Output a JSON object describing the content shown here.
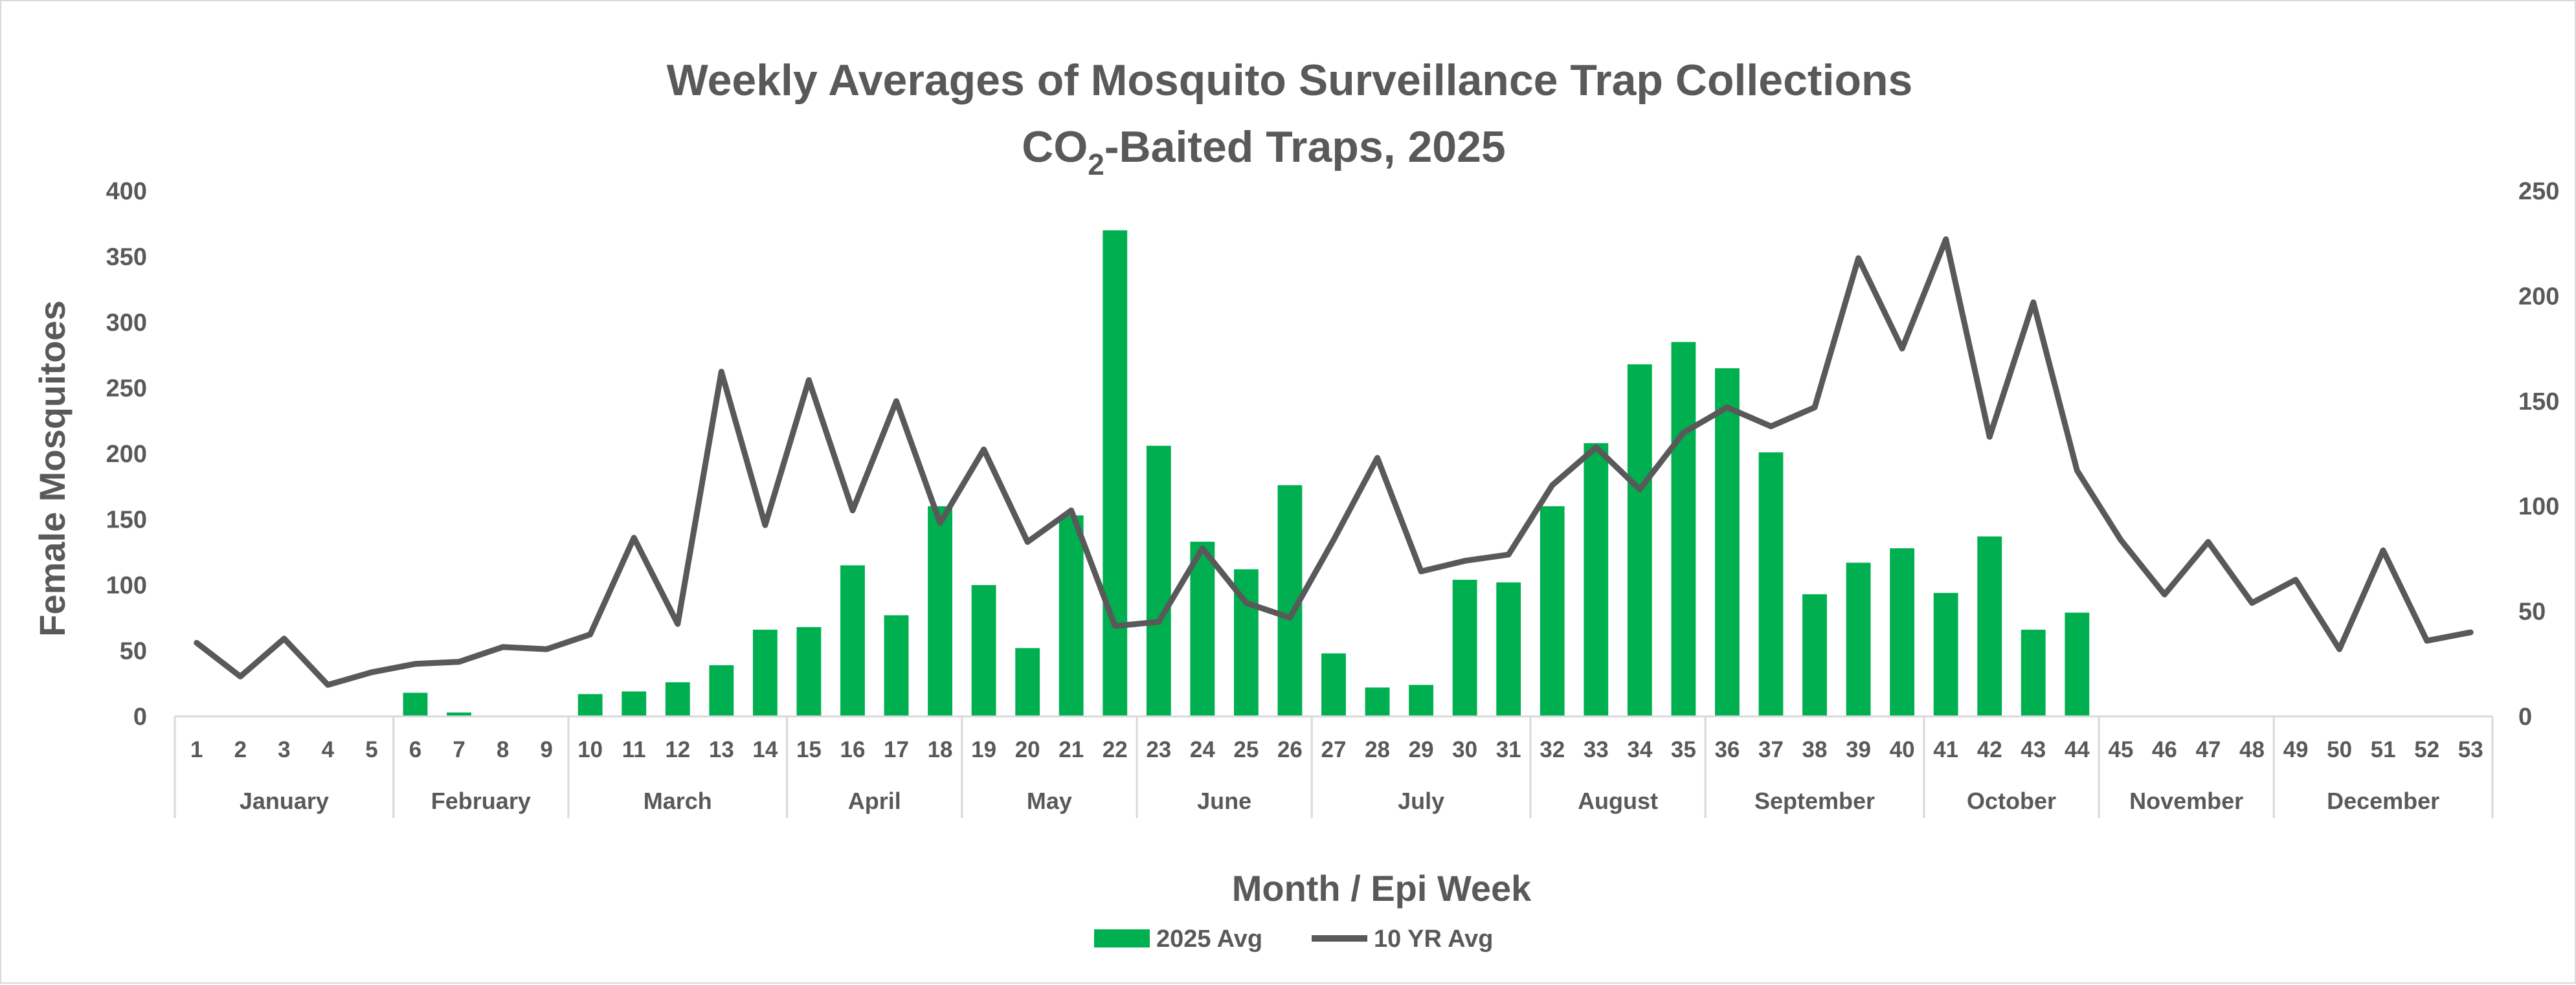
{
  "chart_data": {
    "type": "bar+line",
    "title_line1": "Weekly Averages of Mosquito Surveillance Trap Collections",
    "title_line2_prefix": "CO",
    "title_line2_subscript": "2",
    "title_line2_suffix": "-Baited Traps, 2025",
    "xlabel": "Month / Epi Week",
    "ylabel": "Female Mosquitoes",
    "ylim_left": [
      0,
      400
    ],
    "yticks_left": [
      "0",
      "50",
      "100",
      "150",
      "200",
      "250",
      "300",
      "350",
      "400"
    ],
    "ylim_right": [
      0,
      250
    ],
    "yticks_right": [
      "0",
      "50",
      "100",
      "150",
      "200",
      "250"
    ],
    "weeks": [
      "1",
      "2",
      "3",
      "4",
      "5",
      "6",
      "7",
      "8",
      "9",
      "10",
      "11",
      "12",
      "13",
      "14",
      "15",
      "16",
      "17",
      "18",
      "19",
      "20",
      "21",
      "22",
      "23",
      "24",
      "25",
      "26",
      "27",
      "28",
      "29",
      "30",
      "31",
      "32",
      "33",
      "34",
      "35",
      "36",
      "37",
      "38",
      "39",
      "40",
      "41",
      "42",
      "43",
      "44",
      "45",
      "46",
      "47",
      "48",
      "49",
      "50",
      "51",
      "52",
      "53"
    ],
    "months": [
      {
        "name": "January",
        "start_week": 1,
        "end_week": 5
      },
      {
        "name": "February",
        "start_week": 6,
        "end_week": 9
      },
      {
        "name": "March",
        "start_week": 10,
        "end_week": 14
      },
      {
        "name": "April",
        "start_week": 15,
        "end_week": 18
      },
      {
        "name": "May",
        "start_week": 19,
        "end_week": 22
      },
      {
        "name": "June",
        "start_week": 23,
        "end_week": 26
      },
      {
        "name": "July",
        "start_week": 27,
        "end_week": 31
      },
      {
        "name": "August",
        "start_week": 32,
        "end_week": 35
      },
      {
        "name": "September",
        "start_week": 36,
        "end_week": 40
      },
      {
        "name": "October",
        "start_week": 41,
        "end_week": 44
      },
      {
        "name": "November",
        "start_week": 45,
        "end_week": 48
      },
      {
        "name": "December",
        "start_week": 49,
        "end_week": 53
      }
    ],
    "series": [
      {
        "name": "2025 Avg",
        "type": "bar",
        "axis": "left",
        "color": "#00b050",
        "values": [
          0,
          0,
          0,
          0,
          0,
          18,
          3,
          0,
          0,
          17,
          19,
          26,
          39,
          66,
          68,
          115,
          77,
          160,
          100,
          52,
          153,
          370,
          206,
          133,
          112,
          176,
          48,
          22,
          24,
          104,
          102,
          160,
          208,
          268,
          285,
          265,
          201,
          93,
          117,
          128,
          94,
          137,
          66,
          79,
          null,
          null,
          null,
          null,
          null,
          null,
          null,
          null,
          null
        ]
      },
      {
        "name": "10 YR Avg",
        "type": "line",
        "axis": "right",
        "color": "#595959",
        "values": [
          35,
          19,
          37,
          15,
          21,
          25,
          26,
          33,
          32,
          39,
          85,
          44,
          164,
          91,
          160,
          98,
          150,
          92,
          127,
          83,
          98,
          43,
          45,
          80,
          54,
          47,
          84,
          123,
          69,
          74,
          77,
          110,
          128,
          108,
          135,
          147,
          138,
          147,
          218,
          175,
          227,
          133,
          197,
          117,
          84,
          58,
          83,
          54,
          65,
          32,
          79,
          36,
          40
        ]
      }
    ],
    "legend_position": "bottom"
  }
}
